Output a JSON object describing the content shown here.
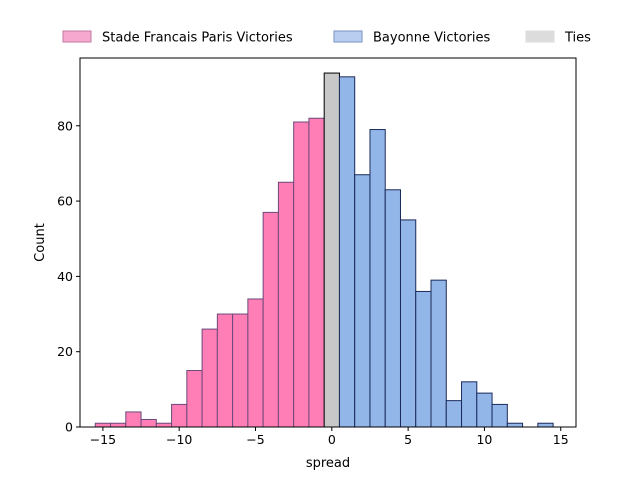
{
  "chart_data": {
    "type": "bar",
    "title": "",
    "xlabel": "spread",
    "ylabel": "Count",
    "xlim": [
      -16.5,
      16
    ],
    "ylim": [
      0,
      98
    ],
    "xticks": [
      -15,
      -10,
      -5,
      0,
      5,
      10,
      15
    ],
    "xtick_labels": [
      "−15",
      "−10",
      "−5",
      "0",
      "5",
      "10",
      "15"
    ],
    "yticks": [
      0,
      20,
      40,
      60,
      80
    ],
    "ytick_labels": [
      "0",
      "20",
      "40",
      "60",
      "80"
    ],
    "bin_width": 1,
    "grid": false,
    "legend_position": "top, above plot",
    "series": [
      {
        "name": "Stade Francais Paris Victories",
        "color": "#ff7eb6",
        "edge_color": "#6a4a7a",
        "bins": [
          {
            "x": -15.5,
            "count": 1
          },
          {
            "x": -14.5,
            "count": 1
          },
          {
            "x": -13.5,
            "count": 4
          },
          {
            "x": -12.5,
            "count": 2
          },
          {
            "x": -11.5,
            "count": 1
          },
          {
            "x": -10.5,
            "count": 6
          },
          {
            "x": -9.5,
            "count": 15
          },
          {
            "x": -8.5,
            "count": 26
          },
          {
            "x": -7.5,
            "count": 30
          },
          {
            "x": -6.5,
            "count": 30
          },
          {
            "x": -5.5,
            "count": 34
          },
          {
            "x": -4.5,
            "count": 57
          },
          {
            "x": -3.5,
            "count": 65
          },
          {
            "x": -2.5,
            "count": 81
          },
          {
            "x": -1.5,
            "count": 82
          }
        ]
      },
      {
        "name": "Ties",
        "color": "#c8c8c8",
        "edge_color": "#000000",
        "bins": [
          {
            "x": -0.5,
            "count": 94
          }
        ]
      },
      {
        "name": "Bayonne Victories",
        "color": "#92b6e8",
        "edge_color": "#1a2a5a",
        "bins": [
          {
            "x": 0.5,
            "count": 93
          },
          {
            "x": 1.5,
            "count": 67
          },
          {
            "x": 2.5,
            "count": 79
          },
          {
            "x": 3.5,
            "count": 63
          },
          {
            "x": 4.5,
            "count": 55
          },
          {
            "x": 5.5,
            "count": 36
          },
          {
            "x": 6.5,
            "count": 39
          },
          {
            "x": 7.5,
            "count": 7
          },
          {
            "x": 8.5,
            "count": 12
          },
          {
            "x": 9.5,
            "count": 9
          },
          {
            "x": 10.5,
            "count": 6
          },
          {
            "x": 11.5,
            "count": 1
          },
          {
            "x": 12.5,
            "count": 0
          },
          {
            "x": 13.5,
            "count": 1
          }
        ]
      }
    ],
    "legend": [
      {
        "label": "Stade Francais Paris Victories",
        "color": "#f7a8cf",
        "edge": "#c07aa0"
      },
      {
        "label": "Bayonne Victories",
        "color": "#b8cdf0",
        "edge": "#7a92c0"
      },
      {
        "label": "Ties",
        "color": "#dcdcdc",
        "edge": "#dcdcdc"
      }
    ]
  }
}
